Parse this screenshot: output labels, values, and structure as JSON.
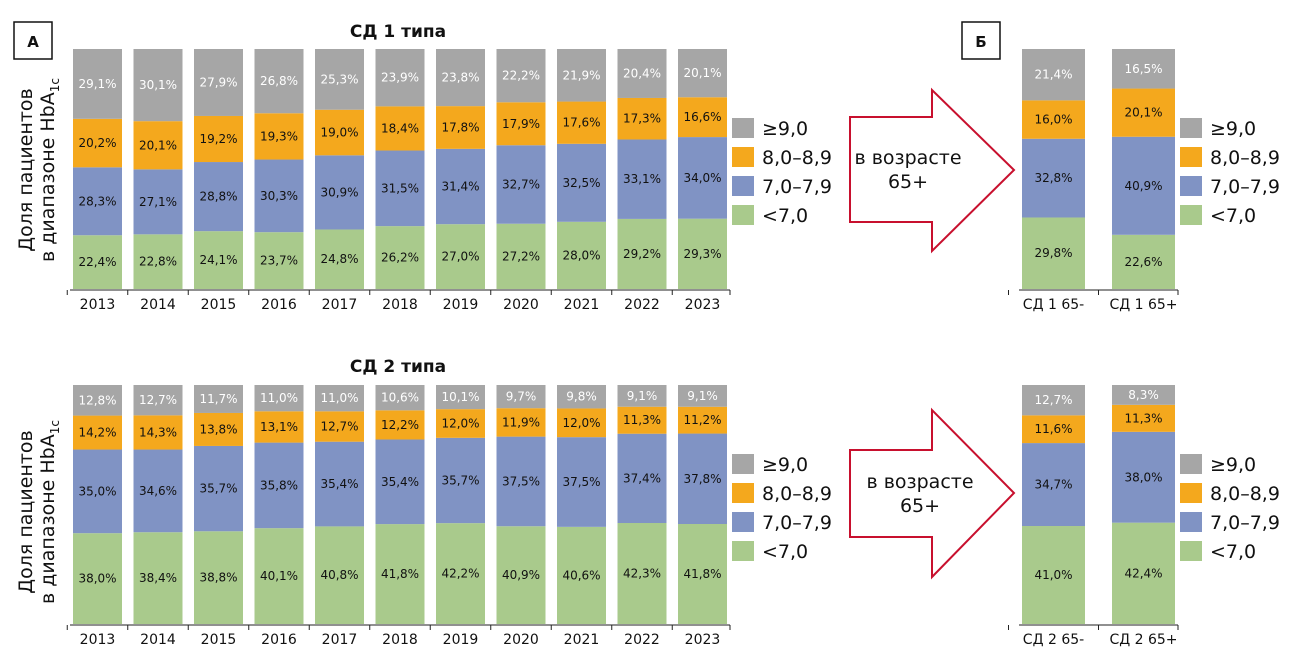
{
  "colors": {
    "ge9": "#a6a6a6",
    "8to89": "#f4a81d",
    "7to79": "#8093c4",
    "lt7": "#a9ca8c",
    "arrow": "#c8102e"
  },
  "panel_a_label": "А",
  "panel_b_label": "Б",
  "y_axis_label_line1": "Доля пациентов",
  "y_axis_label_line2_prefix": "в диапазоне HbA",
  "y_axis_label_sub": "1c",
  "arrow_text_line1": "в возрасте",
  "arrow_text_line2": "65+",
  "legend": [
    "≥9,0",
    "8,0–8,9",
    "7,0–7,9",
    "<7,0"
  ],
  "chart_data": [
    {
      "type": "bar",
      "stacked": true,
      "title": "СД 1 типа",
      "categories": [
        "2013",
        "2014",
        "2015",
        "2016",
        "2017",
        "2018",
        "2019",
        "2020",
        "2021",
        "2022",
        "2023"
      ],
      "series": [
        {
          "name": "<7,0",
          "values": [
            22.4,
            22.8,
            24.1,
            23.7,
            24.8,
            26.2,
            27.0,
            27.2,
            28.0,
            29.2,
            29.3
          ]
        },
        {
          "name": "7,0–7,9",
          "values": [
            28.3,
            27.1,
            28.8,
            30.3,
            30.9,
            31.5,
            31.4,
            32.7,
            32.5,
            33.1,
            34.0
          ]
        },
        {
          "name": "8,0–8,9",
          "values": [
            20.2,
            20.1,
            19.2,
            19.3,
            19.0,
            18.4,
            17.8,
            17.9,
            17.6,
            17.3,
            16.6
          ]
        },
        {
          "name": "≥9,0",
          "values": [
            29.1,
            30.1,
            27.9,
            26.8,
            25.3,
            23.9,
            23.8,
            22.2,
            21.9,
            20.4,
            20.1
          ]
        }
      ],
      "labels": [
        [
          "22,4%",
          "22,8%",
          "24,1%",
          "23,7%",
          "24,8%",
          "26,2%",
          "27,0%",
          "27,2%",
          "28,0%",
          "29,2%",
          "29,3%"
        ],
        [
          "28,3%",
          "27,1%",
          "28,8%",
          "30,3%",
          "30,9%",
          "31,5%",
          "31,4%",
          "32,7%",
          "32,5%",
          "33,1%",
          "34,0%"
        ],
        [
          "20,2%",
          "20,1%",
          "19,2%",
          "19,3%",
          "19,0%",
          "18,4%",
          "17,8%",
          "17,9%",
          "17,6%",
          "17,3%",
          "16,6%"
        ],
        [
          "29,1%",
          "30,1%",
          "27,9%",
          "26,8%",
          "25,3%",
          "23,9%",
          "23,8%",
          "22,2%",
          "21,9%",
          "20,4%",
          "20,1%"
        ]
      ],
      "ylim": [
        0,
        100
      ]
    },
    {
      "type": "bar",
      "stacked": true,
      "title": "",
      "categories": [
        "СД 1 65-",
        "СД 1 65+"
      ],
      "series": [
        {
          "name": "<7,0",
          "values": [
            29.8,
            22.6
          ]
        },
        {
          "name": "7,0–7,9",
          "values": [
            32.8,
            40.9
          ]
        },
        {
          "name": "8,0–8,9",
          "values": [
            16.0,
            20.1
          ]
        },
        {
          "name": "≥9,0",
          "values": [
            21.4,
            16.5
          ]
        }
      ],
      "labels": [
        [
          "29,8%",
          "22,6%"
        ],
        [
          "32,8%",
          "40,9%"
        ],
        [
          "16,0%",
          "20,1%"
        ],
        [
          "21,4%",
          "16,5%"
        ]
      ],
      "ylim": [
        0,
        100
      ]
    },
    {
      "type": "bar",
      "stacked": true,
      "title": "СД 2 типа",
      "categories": [
        "2013",
        "2014",
        "2015",
        "2016",
        "2017",
        "2018",
        "2019",
        "2020",
        "2021",
        "2022",
        "2023"
      ],
      "series": [
        {
          "name": "<7,0",
          "values": [
            38.0,
            38.4,
            38.8,
            40.1,
            40.8,
            41.8,
            42.2,
            40.9,
            40.6,
            42.3,
            41.8
          ]
        },
        {
          "name": "7,0–7,9",
          "values": [
            35.0,
            34.6,
            35.7,
            35.8,
            35.4,
            35.4,
            35.7,
            37.5,
            37.5,
            37.4,
            37.8
          ]
        },
        {
          "name": "8,0–8,9",
          "values": [
            14.2,
            14.3,
            13.8,
            13.1,
            12.7,
            12.2,
            12.0,
            11.9,
            12.0,
            11.3,
            11.2
          ]
        },
        {
          "name": "≥9,0",
          "values": [
            12.8,
            12.7,
            11.7,
            11.0,
            11.0,
            10.6,
            10.1,
            9.7,
            9.8,
            9.1,
            9.1
          ]
        }
      ],
      "labels": [
        [
          "38,0%",
          "38,4%",
          "38,8%",
          "40,1%",
          "40,8%",
          "41,8%",
          "42,2%",
          "40,9%",
          "40,6%",
          "42,3%",
          "41,8%"
        ],
        [
          "35,0%",
          "34,6%",
          "35,7%",
          "35,8%",
          "35,4%",
          "35,4%",
          "35,7%",
          "37,5%",
          "37,5%",
          "37,4%",
          "37,8%"
        ],
        [
          "14,2%",
          "14,3%",
          "13,8%",
          "13,1%",
          "12,7%",
          "12,2%",
          "12,0%",
          "11,9%",
          "12,0%",
          "11,3%",
          "11,2%"
        ],
        [
          "12,8%",
          "12,7%",
          "11,7%",
          "11,0%",
          "11,0%",
          "10,6%",
          "10,1%",
          "9,7%",
          "9,8%",
          "9,1%",
          "9,1%"
        ]
      ],
      "ylim": [
        0,
        100
      ]
    },
    {
      "type": "bar",
      "stacked": true,
      "title": "",
      "categories": [
        "СД 2 65-",
        "СД 2 65+"
      ],
      "series": [
        {
          "name": "<7,0",
          "values": [
            41.0,
            42.4
          ]
        },
        {
          "name": "7,0–7,9",
          "values": [
            34.7,
            38.0
          ]
        },
        {
          "name": "8,0–8,9",
          "values": [
            11.6,
            11.3
          ]
        },
        {
          "name": "≥9,0",
          "values": [
            12.7,
            8.3
          ]
        }
      ],
      "labels": [
        [
          "41,0%",
          "42,4%"
        ],
        [
          "34,7%",
          "38,0%"
        ],
        [
          "11,6%",
          "11,3%"
        ],
        [
          "12,7%",
          "8,3%"
        ]
      ],
      "ylim": [
        0,
        100
      ]
    }
  ]
}
